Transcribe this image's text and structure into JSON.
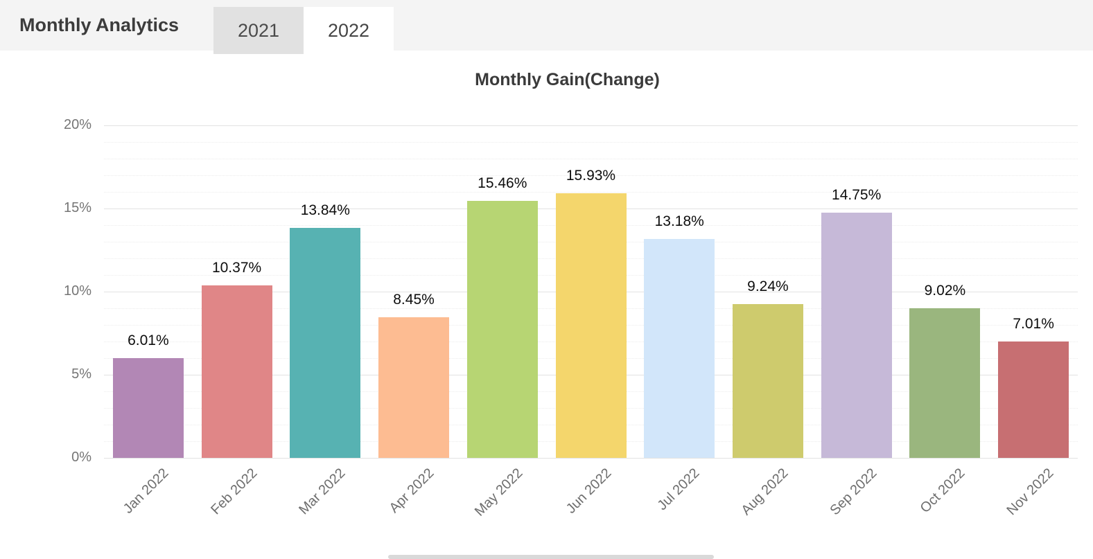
{
  "header": {
    "title": "Monthly Analytics",
    "tabs": [
      {
        "label": "2021",
        "active": false
      },
      {
        "label": "2022",
        "active": true
      }
    ]
  },
  "chart_data": {
    "type": "bar",
    "title": "Monthly Gain(Change)",
    "categories": [
      "Jan 2022",
      "Feb 2022",
      "Mar 2022",
      "Apr 2022",
      "May 2022",
      "Jun 2022",
      "Jul 2022",
      "Aug 2022",
      "Sep 2022",
      "Oct 2022",
      "Nov 2022"
    ],
    "values": [
      6.01,
      10.37,
      13.84,
      8.45,
      15.46,
      15.93,
      13.18,
      9.24,
      14.75,
      9.02,
      7.01
    ],
    "value_labels": [
      "6.01%",
      "10.37%",
      "13.84%",
      "8.45%",
      "15.46%",
      "15.93%",
      "13.18%",
      "9.24%",
      "14.75%",
      "9.02%",
      "7.01%"
    ],
    "bar_colors": [
      "#b287b5",
      "#e08687",
      "#57b2b2",
      "#fdbc92",
      "#b7d573",
      "#f4d66c",
      "#d2e6fa",
      "#cecb6d",
      "#c6b9d8",
      "#9ab67e",
      "#c76f72"
    ],
    "xlabel": "",
    "ylabel": "",
    "ylim": [
      0,
      20
    ],
    "y_tick_values": [
      0,
      5,
      10,
      15,
      20
    ],
    "y_tick_labels": [
      "0%",
      "5%",
      "10%",
      "15%",
      "20%"
    ],
    "minor_grid_step_pct": 1,
    "grid": "horizontal major every 5%, faint minor every 1%",
    "legend": "none",
    "x_label_rotation_deg": -45
  }
}
